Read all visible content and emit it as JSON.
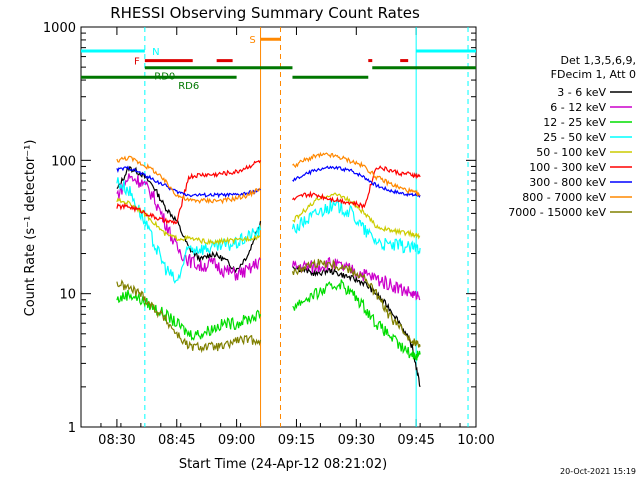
{
  "chart_data": {
    "type": "line",
    "title": "RHESSI Observing Summary Count Rates",
    "xlabel": "Start Time (24-Apr-12 08:21:02)",
    "ylabel": "Count Rate (s⁻¹ detector⁻¹)",
    "yscale": "log",
    "xlim": [
      "08:21",
      "10:00"
    ],
    "ylim": [
      1,
      1000
    ],
    "x_ticks": [
      "08:30",
      "08:45",
      "09:00",
      "09:15",
      "09:30",
      "09:45",
      "10:00"
    ],
    "y_ticks": [
      "1",
      "10",
      "100",
      "1000"
    ],
    "legend_header": [
      "Det 1,3,5,6,9,",
      "FDecim 1, Att 0"
    ],
    "legend_position": "right",
    "timestamp": "20-Oct-2021 15:19",
    "series": [
      {
        "name": "3 - 6 keV",
        "color": "#000000",
        "x": [
          "08:30",
          "08:33",
          "08:36",
          "08:39",
          "08:42",
          "08:45",
          "08:48",
          "08:51",
          "08:54",
          "08:57",
          "09:00",
          "09:03",
          "09:06",
          "09:14",
          "09:17",
          "09:20",
          "09:23",
          "09:26",
          "09:29",
          "09:32",
          "09:35",
          "09:38",
          "09:41",
          "09:44",
          "09:46"
        ],
        "y": [
          60,
          88,
          80,
          65,
          45,
          35,
          22,
          18,
          20,
          18,
          15,
          20,
          35,
          16,
          15,
          14,
          15,
          14,
          13,
          12,
          10,
          8,
          6,
          4,
          2
        ]
      },
      {
        "name": "6 - 12 keV",
        "color": "#cc00cc",
        "x": [
          "08:30",
          "08:33",
          "08:36",
          "08:39",
          "08:42",
          "08:45",
          "08:48",
          "08:51",
          "08:54",
          "08:57",
          "09:00",
          "09:03",
          "09:06",
          "09:14",
          "09:17",
          "09:20",
          "09:23",
          "09:26",
          "09:29",
          "09:32",
          "09:35",
          "09:38",
          "09:41",
          "09:44",
          "09:46"
        ],
        "y": [
          55,
          75,
          70,
          55,
          35,
          22,
          18,
          16,
          17,
          15,
          14,
          15,
          18,
          16,
          16,
          16,
          17,
          16,
          15,
          14,
          13,
          12,
          11,
          10,
          9
        ]
      },
      {
        "name": "12 - 25 keV",
        "color": "#00dd00",
        "x": [
          "08:30",
          "08:33",
          "08:36",
          "08:39",
          "08:42",
          "08:45",
          "08:48",
          "08:51",
          "08:54",
          "08:57",
          "09:00",
          "09:03",
          "09:06",
          "09:14",
          "09:17",
          "09:20",
          "09:23",
          "09:26",
          "09:29",
          "09:32",
          "09:35",
          "09:38",
          "09:41",
          "09:44",
          "09:46"
        ],
        "y": [
          9,
          10,
          9,
          8,
          7,
          6,
          5,
          5,
          5.5,
          6,
          6,
          6.5,
          7,
          8,
          9,
          10,
          11,
          12,
          10,
          8,
          6,
          5,
          4,
          3.5,
          3.5
        ]
      },
      {
        "name": "25 - 50 keV",
        "color": "#00ffff",
        "x": [
          "08:30",
          "08:33",
          "08:36",
          "08:39",
          "08:42",
          "08:45",
          "08:48",
          "08:51",
          "08:54",
          "08:57",
          "09:00",
          "09:03",
          "09:06",
          "09:14",
          "09:17",
          "09:20",
          "09:23",
          "09:26",
          "09:29",
          "09:32",
          "09:35",
          "09:38",
          "09:41",
          "09:44",
          "09:46"
        ],
        "y": [
          70,
          60,
          40,
          25,
          16,
          12,
          22,
          22,
          22,
          23,
          24,
          27,
          30,
          30,
          35,
          40,
          45,
          45,
          40,
          30,
          25,
          23,
          23,
          22,
          22
        ]
      },
      {
        "name": "50 - 100 keV",
        "color": "#cccc00",
        "x": [
          "08:30",
          "08:33",
          "08:36",
          "08:39",
          "08:42",
          "08:45",
          "08:48",
          "08:51",
          "08:54",
          "08:57",
          "09:00",
          "09:03",
          "09:06",
          "09:14",
          "09:17",
          "09:20",
          "09:23",
          "09:26",
          "09:29",
          "09:32",
          "09:35",
          "09:38",
          "09:41",
          "09:44",
          "09:46"
        ],
        "y": [
          50,
          48,
          42,
          35,
          28,
          26,
          26,
          25,
          24,
          25,
          25,
          26,
          27,
          35,
          42,
          50,
          55,
          55,
          48,
          40,
          32,
          30,
          29,
          28,
          27
        ]
      },
      {
        "name": "100 - 300 keV",
        "color": "#ff0000",
        "x": [
          "08:30",
          "08:33",
          "08:36",
          "08:39",
          "08:42",
          "08:45",
          "08:48",
          "08:51",
          "08:54",
          "08:57",
          "09:00",
          "09:03",
          "09:06",
          "09:14",
          "09:17",
          "09:20",
          "09:23",
          "09:26",
          "09:29",
          "09:32",
          "09:35",
          "09:38",
          "09:41",
          "09:44",
          "09:46"
        ],
        "y": [
          45,
          45,
          42,
          38,
          35,
          34,
          75,
          78,
          78,
          80,
          82,
          90,
          100,
          50,
          55,
          55,
          52,
          50,
          48,
          45,
          90,
          85,
          80,
          78,
          75
        ]
      },
      {
        "name": "300 - 800 keV",
        "color": "#0000ff",
        "x": [
          "08:30",
          "08:33",
          "08:36",
          "08:39",
          "08:42",
          "08:45",
          "08:48",
          "08:51",
          "08:54",
          "08:57",
          "09:00",
          "09:03",
          "09:06",
          "09:14",
          "09:17",
          "09:20",
          "09:23",
          "09:26",
          "09:29",
          "09:32",
          "09:35",
          "09:38",
          "09:41",
          "09:44",
          "09:46"
        ],
        "y": [
          85,
          88,
          80,
          72,
          65,
          58,
          55,
          55,
          55,
          55,
          55,
          57,
          60,
          70,
          78,
          85,
          88,
          87,
          83,
          75,
          65,
          60,
          57,
          55,
          55
        ]
      },
      {
        "name": "800 - 7000 keV",
        "color": "#ff8800",
        "x": [
          "08:30",
          "08:33",
          "08:36",
          "08:39",
          "08:42",
          "08:45",
          "08:48",
          "08:51",
          "08:54",
          "08:57",
          "09:00",
          "09:03",
          "09:06",
          "09:14",
          "09:17",
          "09:20",
          "09:23",
          "09:26",
          "09:29",
          "09:32",
          "09:35",
          "09:38",
          "09:41",
          "09:44",
          "09:46"
        ],
        "y": [
          100,
          105,
          95,
          85,
          70,
          55,
          50,
          50,
          50,
          50,
          52,
          55,
          62,
          90,
          100,
          108,
          110,
          105,
          98,
          90,
          75,
          68,
          62,
          58,
          55
        ]
      },
      {
        "name": "7000 - 15000 keV",
        "color": "#808000",
        "x": [
          "08:30",
          "08:33",
          "08:36",
          "08:39",
          "08:42",
          "08:45",
          "08:48",
          "08:51",
          "08:54",
          "08:57",
          "09:00",
          "09:03",
          "09:06",
          "09:14",
          "09:17",
          "09:20",
          "09:23",
          "09:26",
          "09:29",
          "09:32",
          "09:35",
          "09:38",
          "09:41",
          "09:44",
          "09:46"
        ],
        "y": [
          12,
          11,
          10,
          8,
          6.5,
          5,
          4,
          4,
          4,
          4,
          4.5,
          4.5,
          4.5,
          14,
          16,
          17,
          17,
          16,
          15,
          13,
          10,
          7,
          5.5,
          4.5,
          4
        ]
      }
    ],
    "bars": [
      {
        "label": "N",
        "color": "#00ffff",
        "segments": [
          [
            "08:21",
            "08:37"
          ],
          [
            "09:45",
            "10:00"
          ]
        ],
        "level": 660
      },
      {
        "label": "F",
        "color": "#dd0000",
        "segments": [
          [
            "08:37",
            "08:49"
          ],
          [
            "08:55",
            "08:59"
          ],
          [
            "09:33",
            "09:34"
          ],
          [
            "09:41",
            "09:43"
          ]
        ],
        "level": 560
      },
      {
        "label": "S",
        "color": "#ff8800",
        "segments": [
          [
            "09:06",
            "09:11"
          ]
        ],
        "level": 810
      },
      {
        "label": "RD0",
        "color": "#007700",
        "segments": [
          [
            "08:37",
            "09:14"
          ],
          [
            "09:34",
            "10:00"
          ]
        ],
        "level": 495
      },
      {
        "label": "RD6",
        "color": "#007700",
        "segments": [
          [
            "08:21",
            "09:00"
          ],
          [
            "09:14",
            "09:33"
          ]
        ],
        "level": 420
      }
    ],
    "vlines": [
      {
        "time": "08:37",
        "color": "#00ffff",
        "style": "dashed"
      },
      {
        "time": "09:06",
        "color": "#ff8800",
        "style": "solid"
      },
      {
        "time": "09:11",
        "color": "#ff8800",
        "style": "dashed"
      },
      {
        "time": "09:45",
        "color": "#00ffff",
        "style": "solid"
      },
      {
        "time": "09:58",
        "color": "#00ffff",
        "style": "dashed"
      }
    ]
  }
}
